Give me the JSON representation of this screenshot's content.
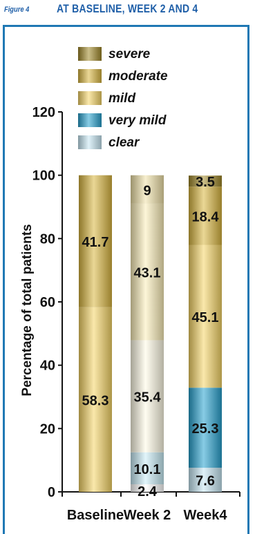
{
  "header": {
    "figure_label": "Figure 4",
    "title": "AT BASELINE, WEEK 2 AND 4"
  },
  "colors": {
    "frame": "#1f78b4",
    "title": "#1f5fa8"
  },
  "chart_data": {
    "type": "bar",
    "stacked": true,
    "categories": [
      "Baseline",
      "Week 2",
      "Week4"
    ],
    "ylabel": "Percentage of total patients",
    "ylim": [
      0,
      120
    ],
    "yticks": [
      0,
      20,
      40,
      60,
      80,
      100,
      120
    ],
    "legend_position": "top",
    "series": [
      {
        "name": "clear",
        "values": [
          0,
          2.4,
          7.6
        ],
        "colors": [
          "#c7e8f4",
          "#ffffff",
          "#c7e8f4"
        ]
      },
      {
        "name": "very mild",
        "values": [
          0,
          10.1,
          25.3
        ],
        "colors": [
          "#27a2cf",
          "#c8edf7",
          "#27a2cf"
        ]
      },
      {
        "name": "mild",
        "values": [
          58.3,
          35.4,
          45.1
        ],
        "colors": [
          "#f6d566",
          "#fffbe6",
          "#f6d566"
        ]
      },
      {
        "name": "moderate",
        "values": [
          41.7,
          43.1,
          18.4
        ],
        "colors": [
          "#d9b63f",
          "#fbefb8",
          "#d9b63f"
        ]
      },
      {
        "name": "severe",
        "values": [
          0,
          9,
          3.5
        ],
        "colors": [
          "#a08828",
          "#f0e2a8",
          "#a08828"
        ]
      }
    ],
    "data_labels": [
      [
        "",
        "2.4",
        "7.6"
      ],
      [
        "",
        "10.1",
        "25.3"
      ],
      [
        "58.3",
        "35.4",
        "45.1"
      ],
      [
        "41.7",
        "43.1",
        "18.4"
      ],
      [
        "",
        "9",
        "3.5"
      ]
    ]
  }
}
